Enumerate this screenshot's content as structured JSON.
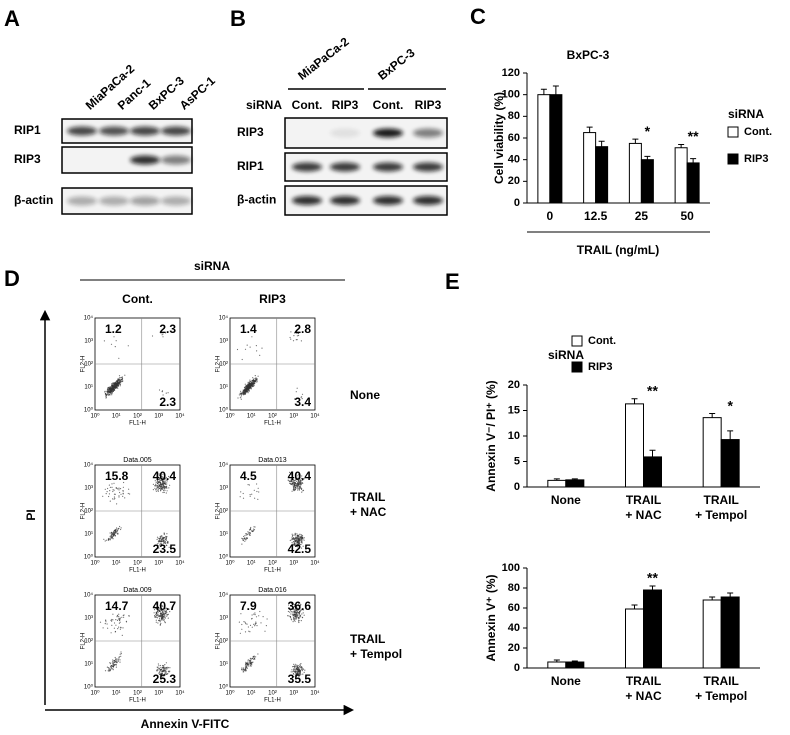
{
  "panels": [
    "A",
    "B",
    "C",
    "D",
    "E"
  ],
  "blot_a": {
    "cell_lines": [
      "MiaPaCa-2",
      "Panc-1",
      "BxPC-3",
      "AsPC-1"
    ],
    "proteins": [
      "RIP1",
      "RIP3",
      "β-actin"
    ]
  },
  "blot_b": {
    "cell_lines": [
      "MiaPaCa-2",
      "BxPC-3"
    ],
    "sirna_label": "siRNA",
    "sirna": [
      "Cont.",
      "RIP3",
      "Cont.",
      "RIP3"
    ],
    "proteins": [
      "RIP3",
      "RIP1",
      "β-actin"
    ]
  },
  "flow": {
    "title": "siRNA",
    "columns": [
      "Cont.",
      "RIP3"
    ],
    "rows": [
      "None",
      "TRAIL\n+ NAC",
      "TRAIL\n+ Tempol"
    ],
    "x_label": "Annexin V-FITC",
    "y_label": "PI",
    "plot_x_label": "FL1-H",
    "plot_y_label": "FL2-H",
    "log_ticks": [
      "10⁰",
      "10¹",
      "10²",
      "10³",
      "10⁴"
    ],
    "plots": [
      [
        {
          "quadrants": [
            1.2,
            2.3,
            2.3
          ]
        },
        {
          "quadrants": [
            1.4,
            2.8,
            3.4
          ]
        }
      ],
      [
        {
          "file": "Data.005",
          "quadrants": [
            15.8,
            40.4,
            23.5
          ]
        },
        {
          "file": "Data.013",
          "quadrants": [
            4.5,
            40.4,
            42.5
          ]
        }
      ],
      [
        {
          "file": "Data.009",
          "quadrants": [
            14.7,
            40.7,
            25.3
          ]
        },
        {
          "file": "Data.016",
          "quadrants": [
            7.9,
            36.6,
            35.5
          ]
        }
      ]
    ]
  },
  "chart_data": [
    {
      "type": "bar",
      "title": "BxPC-3",
      "y_label": "Cell viability (%)",
      "x_label": "TRAIL (ng/mL)",
      "categories": [
        "0",
        "12.5",
        "25",
        "50"
      ],
      "legend_title": "siRNA",
      "series": [
        {
          "name": "Cont.",
          "color": "#ffffff",
          "values": [
            100,
            65,
            55,
            51
          ],
          "errors": [
            5,
            5,
            4,
            3
          ]
        },
        {
          "name": "RIP3",
          "color": "#000000",
          "values": [
            100,
            52,
            40,
            37
          ],
          "errors": [
            8,
            5,
            3,
            4
          ]
        }
      ],
      "annotations": [
        {
          "text": "*",
          "x": "25"
        },
        {
          "text": "**",
          "x": "50"
        }
      ],
      "ylim": [
        0,
        120
      ],
      "yticks": [
        0,
        20,
        40,
        60,
        80,
        100,
        120
      ],
      "grid": false
    },
    {
      "type": "bar",
      "y_label": "Annexin V⁻/ PI⁺ (%)",
      "categories": [
        "None",
        "TRAIL\n+ NAC",
        "TRAIL\n+ Tempol"
      ],
      "legend_title": "siRNA",
      "series": [
        {
          "name": "Cont.",
          "color": "#ffffff",
          "values": [
            1.3,
            16.3,
            13.6
          ],
          "errors": [
            0.3,
            1,
            0.8
          ]
        },
        {
          "name": "RIP3",
          "color": "#000000",
          "values": [
            1.4,
            5.9,
            9.3
          ],
          "errors": [
            0.2,
            1.3,
            1.7
          ]
        }
      ],
      "annotations": [
        {
          "text": "**",
          "x": "TRAIL\n+ NAC"
        },
        {
          "text": "*",
          "x": "TRAIL\n+ Tempol"
        }
      ],
      "ylim": [
        0,
        20
      ],
      "yticks": [
        0,
        5,
        10,
        15,
        20
      ],
      "grid": false
    },
    {
      "type": "bar",
      "y_label": "Annexin V⁺ (%)",
      "categories": [
        "None",
        "TRAIL\n+ NAC",
        "TRAIL\n+ Tempol"
      ],
      "series": [
        {
          "color": "#ffffff",
          "values": [
            6,
            59,
            68
          ],
          "errors": [
            2,
            4,
            3
          ]
        },
        {
          "color": "#000000",
          "values": [
            6,
            78,
            71
          ],
          "errors": [
            1,
            4,
            4
          ]
        }
      ],
      "annotations": [
        {
          "text": "**",
          "x": "TRAIL\n+ NAC"
        }
      ],
      "ylim": [
        0,
        100
      ],
      "yticks": [
        0,
        20,
        40,
        60,
        80,
        100
      ],
      "grid": false
    }
  ]
}
